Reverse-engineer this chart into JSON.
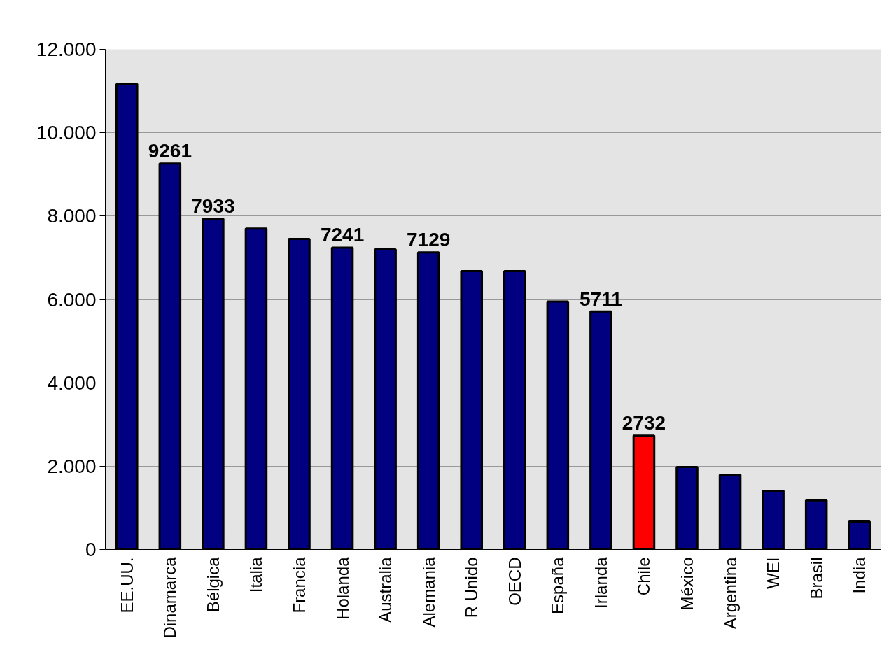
{
  "chart_data": {
    "type": "bar",
    "categories": [
      "EE.UU.",
      "Dinamarca",
      "Bélgica",
      "Italia",
      "Francia",
      "Holanda",
      "Australia",
      "Alemania",
      "R Unido",
      "OECD",
      "España",
      "Irlanda",
      "Chile",
      "México",
      "Argentina",
      "WEI",
      "Brasil",
      "India"
    ],
    "values": [
      11170,
      9261,
      7933,
      7700,
      7450,
      7241,
      7200,
      7129,
      6680,
      6680,
      5950,
      5711,
      2732,
      1980,
      1790,
      1410,
      1180,
      670
    ],
    "value_labels": [
      null,
      "9261",
      "7933",
      null,
      null,
      "7241",
      null,
      "7129",
      null,
      null,
      null,
      "5711",
      "2732",
      null,
      null,
      null,
      null,
      null
    ],
    "colors": [
      "#000080",
      "#000080",
      "#000080",
      "#000080",
      "#000080",
      "#000080",
      "#000080",
      "#000080",
      "#000080",
      "#000080",
      "#000080",
      "#000080",
      "#ff0000",
      "#000080",
      "#000080",
      "#000080",
      "#000080",
      "#000080"
    ],
    "ylim": [
      0,
      12000
    ],
    "yticks": [
      {
        "value": 0,
        "label": "0"
      },
      {
        "value": 2000,
        "label": "2.000"
      },
      {
        "value": 4000,
        "label": "4.000"
      },
      {
        "value": 6000,
        "label": "6.000"
      },
      {
        "value": 8000,
        "label": "8.000"
      },
      {
        "value": 10000,
        "label": "10.000"
      },
      {
        "value": 12000,
        "label": "12.000"
      }
    ],
    "grid": "y"
  }
}
